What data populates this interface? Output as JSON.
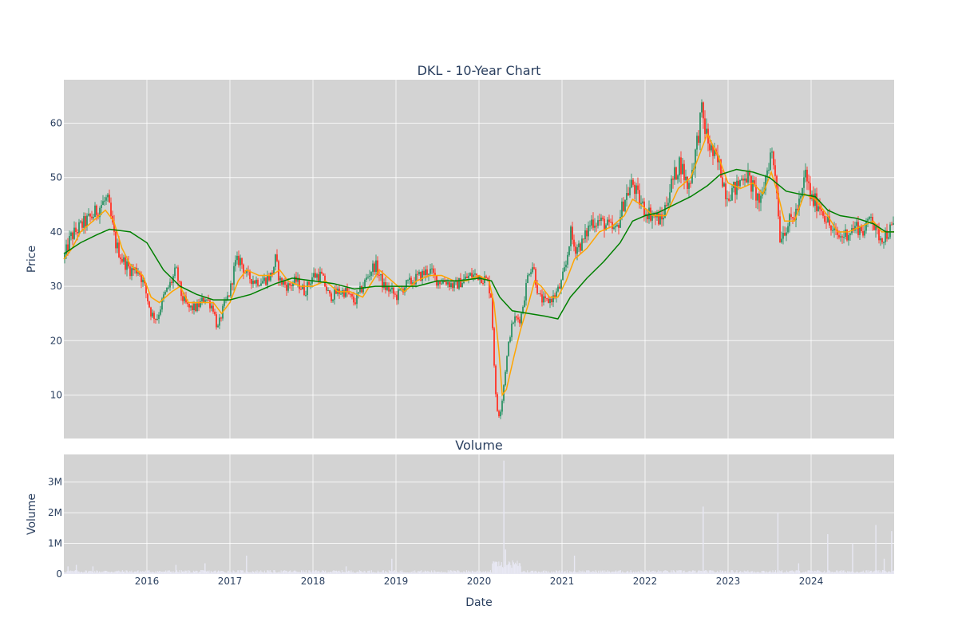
{
  "chart_data": [
    {
      "type": "candlestick",
      "title": "DKL - 10-Year Chart",
      "ylabel": "Price",
      "xlabel": "",
      "xlim": [
        2015.0,
        2025.0
      ],
      "ylim": [
        2,
        68
      ],
      "yticks": [
        10,
        20,
        30,
        40,
        50,
        60
      ],
      "xticks": [
        2016,
        2017,
        2018,
        2019,
        2020,
        2021,
        2022,
        2023,
        2024
      ],
      "grid": true,
      "up_color": "#3d9970",
      "down_color": "#ff4136",
      "price_path": [
        [
          2015.0,
          35
        ],
        [
          2015.08,
          39
        ],
        [
          2015.2,
          41
        ],
        [
          2015.35,
          43
        ],
        [
          2015.45,
          45
        ],
        [
          2015.52,
          46
        ],
        [
          2015.55,
          44
        ],
        [
          2015.62,
          38
        ],
        [
          2015.7,
          35
        ],
        [
          2015.8,
          33
        ],
        [
          2015.9,
          33
        ],
        [
          2015.97,
          30
        ],
        [
          2016.05,
          25
        ],
        [
          2016.12,
          24
        ],
        [
          2016.2,
          28
        ],
        [
          2016.3,
          31
        ],
        [
          2016.35,
          33
        ],
        [
          2016.42,
          28
        ],
        [
          2016.5,
          26
        ],
        [
          2016.6,
          26
        ],
        [
          2016.7,
          28
        ],
        [
          2016.8,
          26
        ],
        [
          2016.85,
          22
        ],
        [
          2016.92,
          26
        ],
        [
          2017.0,
          29
        ],
        [
          2017.06,
          34
        ],
        [
          2017.12,
          35
        ],
        [
          2017.2,
          32
        ],
        [
          2017.3,
          31
        ],
        [
          2017.4,
          31
        ],
        [
          2017.5,
          32
        ],
        [
          2017.55,
          35
        ],
        [
          2017.6,
          31
        ],
        [
          2017.7,
          30
        ],
        [
          2017.8,
          31
        ],
        [
          2017.9,
          29
        ],
        [
          2018.0,
          32
        ],
        [
          2018.1,
          32
        ],
        [
          2018.2,
          28
        ],
        [
          2018.3,
          29
        ],
        [
          2018.4,
          29
        ],
        [
          2018.5,
          27
        ],
        [
          2018.6,
          30
        ],
        [
          2018.7,
          33
        ],
        [
          2018.75,
          34
        ],
        [
          2018.85,
          30
        ],
        [
          2018.95,
          29
        ],
        [
          2019.0,
          28
        ],
        [
          2019.1,
          30
        ],
        [
          2019.2,
          31
        ],
        [
          2019.3,
          32
        ],
        [
          2019.4,
          33
        ],
        [
          2019.5,
          31
        ],
        [
          2019.6,
          31
        ],
        [
          2019.7,
          30
        ],
        [
          2019.8,
          31
        ],
        [
          2019.9,
          32
        ],
        [
          2020.0,
          32
        ],
        [
          2020.1,
          31
        ],
        [
          2020.15,
          28
        ],
        [
          2020.17,
          20
        ],
        [
          2020.2,
          10
        ],
        [
          2020.23,
          6
        ],
        [
          2020.27,
          8
        ],
        [
          2020.32,
          15
        ],
        [
          2020.37,
          21
        ],
        [
          2020.42,
          24
        ],
        [
          2020.5,
          24
        ],
        [
          2020.6,
          33
        ],
        [
          2020.65,
          34
        ],
        [
          2020.72,
          28
        ],
        [
          2020.8,
          27
        ],
        [
          2020.9,
          28
        ],
        [
          2020.98,
          30
        ],
        [
          2021.05,
          34
        ],
        [
          2021.1,
          40
        ],
        [
          2021.15,
          37
        ],
        [
          2021.25,
          38
        ],
        [
          2021.35,
          42
        ],
        [
          2021.45,
          42
        ],
        [
          2021.55,
          41
        ],
        [
          2021.65,
          40
        ],
        [
          2021.75,
          46
        ],
        [
          2021.85,
          49
        ],
        [
          2021.92,
          46
        ],
        [
          2022.0,
          44
        ],
        [
          2022.1,
          43
        ],
        [
          2022.2,
          42
        ],
        [
          2022.3,
          48
        ],
        [
          2022.42,
          53
        ],
        [
          2022.52,
          48
        ],
        [
          2022.6,
          54
        ],
        [
          2022.68,
          62
        ],
        [
          2022.75,
          57
        ],
        [
          2022.82,
          54
        ],
        [
          2022.9,
          52
        ],
        [
          2022.98,
          47
        ],
        [
          2023.1,
          48
        ],
        [
          2023.2,
          51
        ],
        [
          2023.3,
          48
        ],
        [
          2023.4,
          45
        ],
        [
          2023.45,
          50
        ],
        [
          2023.52,
          55
        ],
        [
          2023.58,
          50
        ],
        [
          2023.62,
          39
        ],
        [
          2023.7,
          41
        ],
        [
          2023.8,
          43
        ],
        [
          2023.88,
          46
        ],
        [
          2023.93,
          51
        ],
        [
          2024.0,
          46
        ],
        [
          2024.1,
          45
        ],
        [
          2024.2,
          42
        ],
        [
          2024.25,
          40
        ],
        [
          2024.35,
          39
        ],
        [
          2024.45,
          40
        ],
        [
          2024.55,
          41
        ],
        [
          2024.65,
          40
        ],
        [
          2024.72,
          44
        ],
        [
          2024.77,
          40
        ],
        [
          2024.85,
          39
        ],
        [
          2024.93,
          40
        ],
        [
          2025.0,
          41
        ]
      ],
      "series": [
        {
          "name": "",
          "color": "#ffa500",
          "values": [
            [
              2015.0,
              35
            ],
            [
              2015.1,
              37
            ],
            [
              2015.2,
              40
            ],
            [
              2015.35,
              42
            ],
            [
              2015.5,
              44
            ],
            [
              2015.6,
              42
            ],
            [
              2015.7,
              37
            ],
            [
              2015.8,
              34
            ],
            [
              2015.95,
              32
            ],
            [
              2016.05,
              28
            ],
            [
              2016.15,
              27
            ],
            [
              2016.3,
              29
            ],
            [
              2016.4,
              30
            ],
            [
              2016.5,
              27
            ],
            [
              2016.65,
              27
            ],
            [
              2016.8,
              27
            ],
            [
              2016.9,
              25
            ],
            [
              2017.0,
              27
            ],
            [
              2017.1,
              31
            ],
            [
              2017.2,
              33
            ],
            [
              2017.35,
              32
            ],
            [
              2017.5,
              32
            ],
            [
              2017.6,
              33
            ],
            [
              2017.7,
              31
            ],
            [
              2017.85,
              30
            ],
            [
              2018.0,
              30
            ],
            [
              2018.15,
              31
            ],
            [
              2018.3,
              29
            ],
            [
              2018.45,
              29
            ],
            [
              2018.6,
              28
            ],
            [
              2018.72,
              31
            ],
            [
              2018.8,
              33
            ],
            [
              2018.95,
              31
            ],
            [
              2019.1,
              29
            ],
            [
              2019.25,
              31
            ],
            [
              2019.4,
              32
            ],
            [
              2019.55,
              32
            ],
            [
              2019.7,
              31
            ],
            [
              2019.85,
              31
            ],
            [
              2020.0,
              32
            ],
            [
              2020.12,
              31
            ],
            [
              2020.18,
              27
            ],
            [
              2020.24,
              18
            ],
            [
              2020.28,
              10
            ],
            [
              2020.33,
              11
            ],
            [
              2020.42,
              17
            ],
            [
              2020.5,
              22
            ],
            [
              2020.6,
              27
            ],
            [
              2020.67,
              31
            ],
            [
              2020.75,
              30
            ],
            [
              2020.85,
              28
            ],
            [
              2020.95,
              28
            ],
            [
              2021.05,
              31
            ],
            [
              2021.15,
              35
            ],
            [
              2021.3,
              37
            ],
            [
              2021.45,
              40
            ],
            [
              2021.6,
              41
            ],
            [
              2021.75,
              43
            ],
            [
              2021.85,
              46
            ],
            [
              2021.95,
              45
            ],
            [
              2022.1,
              43
            ],
            [
              2022.25,
              43
            ],
            [
              2022.4,
              48
            ],
            [
              2022.55,
              50
            ],
            [
              2022.65,
              54
            ],
            [
              2022.75,
              58
            ],
            [
              2022.88,
              54
            ],
            [
              2023.0,
              49
            ],
            [
              2023.15,
              48
            ],
            [
              2023.3,
              49
            ],
            [
              2023.42,
              47
            ],
            [
              2023.52,
              51
            ],
            [
              2023.6,
              47
            ],
            [
              2023.68,
              42
            ],
            [
              2023.8,
              42
            ],
            [
              2023.92,
              47
            ],
            [
              2024.05,
              46
            ],
            [
              2024.2,
              43
            ],
            [
              2024.32,
              40
            ],
            [
              2024.45,
              40
            ],
            [
              2024.6,
              41
            ],
            [
              2024.75,
              42
            ],
            [
              2024.85,
              40
            ],
            [
              2025.0,
              40
            ]
          ]
        },
        {
          "name": "",
          "color": "#008000",
          "values": [
            [
              2015.0,
              36
            ],
            [
              2015.2,
              38
            ],
            [
              2015.4,
              39.5
            ],
            [
              2015.55,
              40.5
            ],
            [
              2015.8,
              40
            ],
            [
              2016.0,
              38
            ],
            [
              2016.2,
              33
            ],
            [
              2016.4,
              30
            ],
            [
              2016.6,
              28.5
            ],
            [
              2016.8,
              27.5
            ],
            [
              2017.0,
              27.5
            ],
            [
              2017.25,
              28.5
            ],
            [
              2017.55,
              30.5
            ],
            [
              2017.75,
              31.5
            ],
            [
              2018.0,
              31
            ],
            [
              2018.25,
              30.5
            ],
            [
              2018.5,
              29.5
            ],
            [
              2018.75,
              30
            ],
            [
              2019.0,
              30
            ],
            [
              2019.25,
              30
            ],
            [
              2019.5,
              31
            ],
            [
              2019.75,
              31
            ],
            [
              2020.0,
              31.5
            ],
            [
              2020.15,
              31
            ],
            [
              2020.25,
              28
            ],
            [
              2020.4,
              25.5
            ],
            [
              2020.6,
              25
            ],
            [
              2020.8,
              24.5
            ],
            [
              2020.95,
              24
            ],
            [
              2021.1,
              28
            ],
            [
              2021.3,
              31.5
            ],
            [
              2021.5,
              34.5
            ],
            [
              2021.7,
              38
            ],
            [
              2021.85,
              42
            ],
            [
              2022.0,
              43
            ],
            [
              2022.15,
              43.5
            ],
            [
              2022.35,
              45
            ],
            [
              2022.55,
              46.5
            ],
            [
              2022.75,
              48.5
            ],
            [
              2022.9,
              50.5
            ],
            [
              2023.1,
              51.5
            ],
            [
              2023.3,
              51
            ],
            [
              2023.5,
              50
            ],
            [
              2023.7,
              47.5
            ],
            [
              2023.85,
              47
            ],
            [
              2024.05,
              46.5
            ],
            [
              2024.2,
              44
            ],
            [
              2024.35,
              43
            ],
            [
              2024.55,
              42.5
            ],
            [
              2024.75,
              41.5
            ],
            [
              2024.9,
              40
            ],
            [
              2025.0,
              40
            ]
          ]
        }
      ]
    },
    {
      "type": "bar",
      "title": "Volume",
      "ylabel": "Volume",
      "xlabel": "Date",
      "xlim": [
        2015.0,
        2025.0
      ],
      "ylim": [
        0,
        3900000
      ],
      "ytick_labels": [
        "0",
        "1M",
        "2M",
        "3M"
      ],
      "yticks": [
        0,
        1000000,
        2000000,
        3000000
      ],
      "xtick_labels": [
        "2016",
        "2017",
        "2018",
        "2019",
        "2020",
        "2021",
        "2022",
        "2023",
        "2024"
      ],
      "xticks": [
        2016,
        2017,
        2018,
        2019,
        2020,
        2021,
        2022,
        2023,
        2024
      ],
      "grid": true,
      "bar_color": "#e8e8f4",
      "spikes": [
        [
          2015.05,
          250000
        ],
        [
          2015.15,
          300000
        ],
        [
          2015.35,
          250000
        ],
        [
          2016.35,
          300000
        ],
        [
          2016.7,
          350000
        ],
        [
          2017.2,
          600000
        ],
        [
          2018.4,
          250000
        ],
        [
          2018.95,
          500000
        ],
        [
          2020.2,
          400000
        ],
        [
          2020.3,
          3700000
        ],
        [
          2020.32,
          800000
        ],
        [
          2020.5,
          250000
        ],
        [
          2021.15,
          600000
        ],
        [
          2022.7,
          2200000
        ],
        [
          2023.6,
          2000000
        ],
        [
          2023.85,
          350000
        ],
        [
          2024.2,
          1300000
        ],
        [
          2024.5,
          1000000
        ],
        [
          2024.78,
          1600000
        ],
        [
          2024.88,
          500000
        ],
        [
          2024.97,
          1400000
        ]
      ]
    }
  ]
}
